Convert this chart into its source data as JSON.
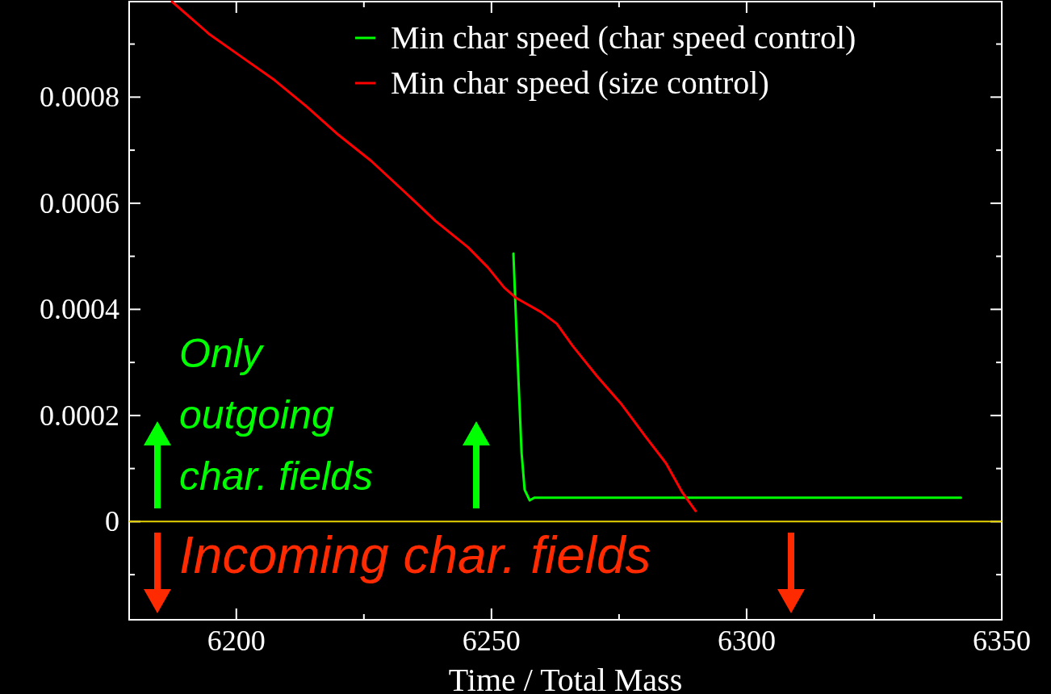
{
  "chart_data": {
    "type": "line",
    "xlabel": "Time / Total Mass",
    "xlim": [
      6179,
      6350
    ],
    "ylim": [
      -0.000185,
      0.00098
    ],
    "xticks": [
      6200,
      {
        "value": 6225,
        "label": null
      },
      6250,
      {
        "value": 6275,
        "label": null
      },
      6300,
      {
        "value": 6325,
        "label": null
      },
      6350
    ],
    "yticks": [
      {
        "value": -0.0001,
        "label": null
      },
      0,
      {
        "value": 0.0001,
        "label": null
      },
      0.0002,
      {
        "value": 0.0003,
        "label": null
      },
      0.0004,
      {
        "value": 0.0005,
        "label": null
      },
      0.0006,
      {
        "value": 0.0007,
        "label": null
      },
      0.0008,
      {
        "value": 0.0009,
        "label": null
      }
    ],
    "legend": "top right",
    "grid": false,
    "marker": "none",
    "line_style": "solid",
    "ref_lines": [
      {
        "axis": "y",
        "value": 0,
        "color": "#e6d200"
      }
    ],
    "annotations": [
      "Only outgoing char. fields",
      "Incoming char. fields"
    ],
    "series": [
      {
        "name": "Min char speed (char speed control)",
        "color": "#00ff00",
        "x": [
          6254.3,
          6255.1,
          6255.9,
          6256.5,
          6257.5,
          6258.4,
          6300,
          6342
        ],
        "values": [
          0.000505,
          0.00031,
          0.00013,
          6e-05,
          4e-05,
          4.5e-05,
          4.5e-05,
          4.5e-05
        ]
      },
      {
        "name": "Min char speed (size control)",
        "color": "#ff0000",
        "x": [
          6187.4,
          6194.8,
          6201,
          6207.5,
          6213.8,
          6220,
          6226.4,
          6232.8,
          6239,
          6245.4,
          6249.3,
          6252.5,
          6254.9,
          6259.7,
          6262.8,
          6266,
          6270.7,
          6275.5,
          6280.2,
          6284.2,
          6287.4,
          6290
        ],
        "values": [
          0.00098,
          0.000918,
          0.000876,
          0.000832,
          0.000782,
          0.000729,
          0.00068,
          0.000623,
          0.000567,
          0.000517,
          0.000479,
          0.000441,
          0.000421,
          0.000395,
          0.000373,
          0.00033,
          0.000274,
          0.000221,
          0.00016,
          0.00011,
          5.5e-05,
          2e-05
        ]
      }
    ]
  }
}
